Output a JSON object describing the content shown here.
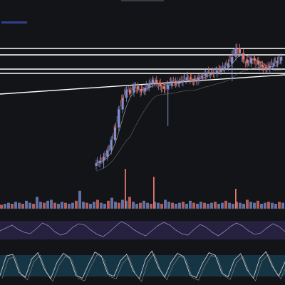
{
  "chart_data": {
    "type": "candlestick",
    "price_axis_range": [
      0,
      100
    ],
    "colors": {
      "background": "#131417",
      "up_candle": "#7f8fd0",
      "down_candle": "#e8776a",
      "moving_average_fast": "#d9d9d9",
      "moving_average_slow": "#8a8a8a",
      "trendline": "#ffffff",
      "rsi_band": "#2a2345",
      "stochastic_band": "#16394a",
      "oscillator_line": "#c9c9c9"
    },
    "price_series": [
      [
        0,
        6
      ],
      [
        2,
        8
      ],
      [
        4,
        11
      ],
      [
        6,
        16
      ],
      [
        8,
        24
      ],
      [
        10,
        34
      ],
      [
        12,
        48
      ],
      [
        14,
        57
      ],
      [
        16,
        63
      ],
      [
        18,
        61
      ],
      [
        20,
        66
      ],
      [
        22,
        64
      ],
      [
        24,
        62
      ],
      [
        26,
        65
      ],
      [
        28,
        68
      ],
      [
        30,
        71
      ],
      [
        32,
        69
      ],
      [
        34,
        66
      ],
      [
        36,
        64
      ],
      [
        38,
        67
      ],
      [
        40,
        70
      ],
      [
        42,
        68
      ],
      [
        44,
        69
      ],
      [
        46,
        71
      ],
      [
        48,
        73
      ],
      [
        50,
        72
      ],
      [
        52,
        70
      ],
      [
        54,
        73
      ],
      [
        56,
        74
      ],
      [
        58,
        76
      ],
      [
        60,
        77
      ],
      [
        62,
        76
      ],
      [
        64,
        78
      ],
      [
        66,
        79
      ],
      [
        68,
        81
      ],
      [
        70,
        84
      ],
      [
        72,
        89
      ],
      [
        74,
        96
      ],
      [
        76,
        92
      ],
      [
        78,
        87
      ],
      [
        80,
        84
      ],
      [
        82,
        88
      ],
      [
        84,
        86
      ],
      [
        86,
        83
      ],
      [
        88,
        81
      ],
      [
        90,
        79
      ],
      [
        92,
        82
      ],
      [
        94,
        84
      ],
      [
        96,
        86
      ],
      [
        98,
        89
      ]
    ],
    "spikes": [
      {
        "x": 4,
        "low": 2,
        "high": 14
      },
      {
        "x": 38,
        "low": 35,
        "high": 68
      },
      {
        "x": 72,
        "low": 70,
        "high": 94
      }
    ],
    "horizontal_levels": [
      96,
      93,
      86,
      84
    ],
    "trendline": {
      "from": [
        0,
        62
      ],
      "to": [
        100,
        82
      ]
    },
    "volume": [
      4,
      5,
      6,
      5,
      7,
      6,
      5,
      8,
      6,
      5,
      12,
      7,
      6,
      8,
      9,
      6,
      5,
      7,
      6,
      5,
      6,
      8,
      18,
      7,
      6,
      5,
      7,
      9,
      6,
      5,
      8,
      11,
      7,
      6,
      9,
      8,
      12,
      7,
      5,
      6,
      8,
      6,
      5,
      7,
      6,
      5,
      9,
      7,
      6,
      5,
      6,
      7,
      5,
      8,
      6,
      5,
      7,
      6,
      5,
      6,
      7,
      5,
      6,
      8,
      6,
      5,
      7,
      6,
      5,
      9,
      7,
      6,
      8,
      5,
      6,
      7,
      6,
      5,
      7,
      6
    ],
    "volume_spikes": [
      {
        "x": 35,
        "value": 40
      },
      {
        "x": 43,
        "value": 32
      },
      {
        "x": 66,
        "value": 20
      }
    ],
    "rsi": [
      50,
      54,
      58,
      52,
      48,
      46,
      53,
      61,
      57,
      49,
      44,
      47,
      55,
      60,
      58,
      51,
      45,
      42,
      48,
      56,
      63,
      59,
      52,
      47,
      43,
      50,
      57,
      62,
      58,
      51,
      46,
      44,
      52,
      59,
      55,
      48,
      43,
      49,
      56,
      61,
      57,
      50,
      45,
      47,
      54,
      60,
      56,
      49
    ],
    "stochastic": [
      20,
      80,
      85,
      30,
      15,
      70,
      90,
      40,
      10,
      60,
      88,
      75,
      20,
      12,
      55,
      92,
      80,
      25,
      18,
      65,
      85,
      35,
      10,
      70,
      95,
      45,
      15,
      60,
      88,
      78,
      22,
      14,
      58,
      90,
      82,
      28,
      16,
      68,
      87,
      38,
      12,
      72,
      93,
      48,
      18,
      62
    ]
  }
}
